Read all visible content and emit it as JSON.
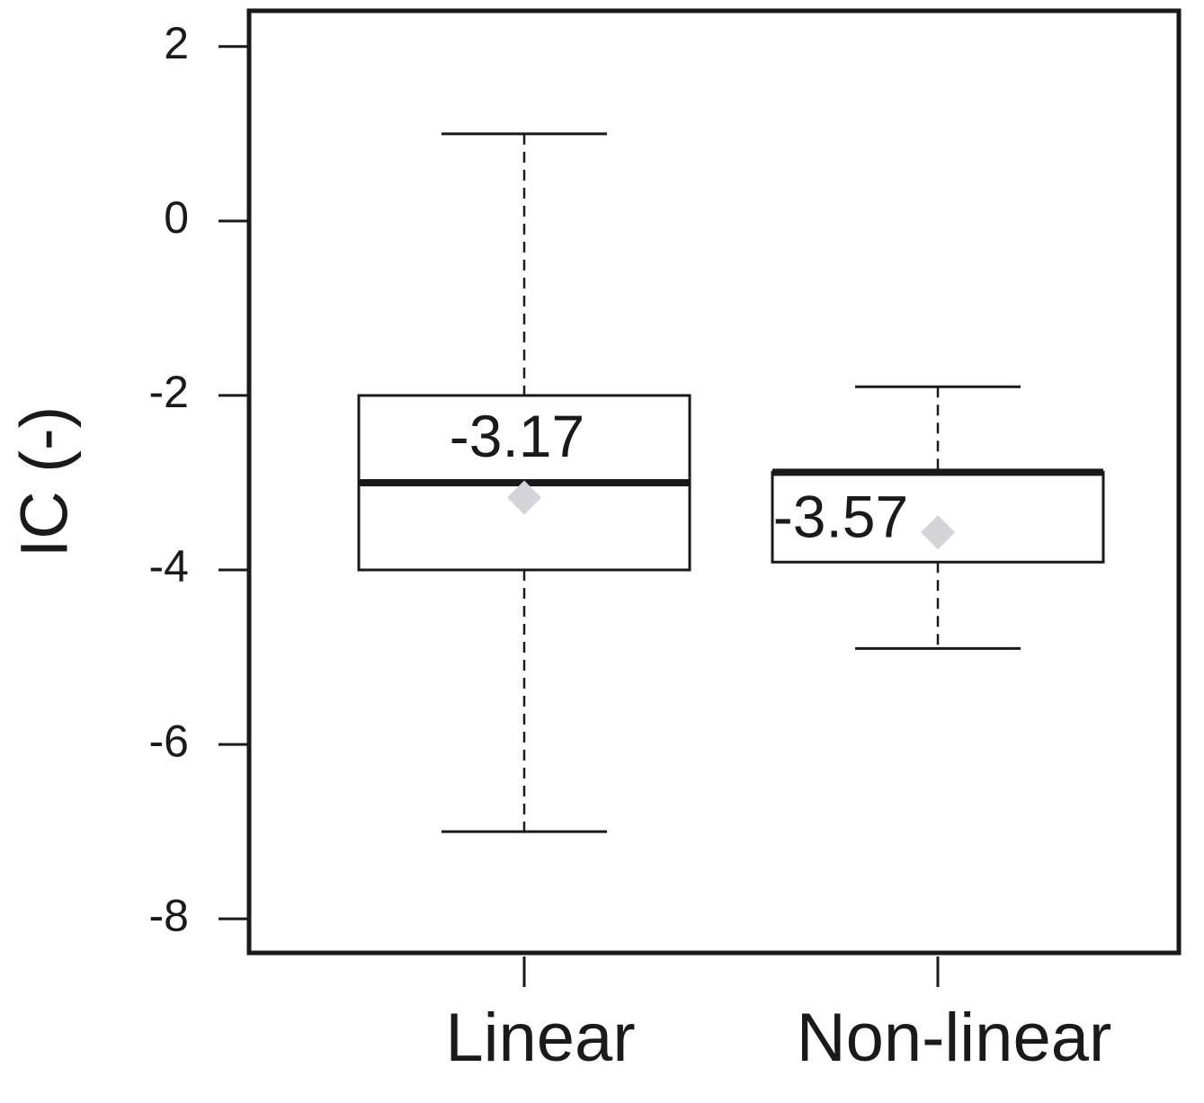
{
  "chart_data": {
    "type": "box",
    "y_label": "IC (-)",
    "categories": [
      "Linear",
      "Non-linear"
    ],
    "whisker_low": [
      -7.0,
      -4.9
    ],
    "q1": [
      -4.0,
      -3.91
    ],
    "median": [
      -3.0,
      -2.88
    ],
    "q3": [
      -2.0,
      -2.88
    ],
    "whisker_high": [
      1.0,
      -1.9
    ],
    "mean": [
      -3.17,
      -3.57
    ],
    "mean_color": "#d3d3d8",
    "ylim": [
      -8.39,
      2.41
    ],
    "yticks": [
      -8,
      -6,
      -4,
      -2,
      0,
      2
    ]
  }
}
